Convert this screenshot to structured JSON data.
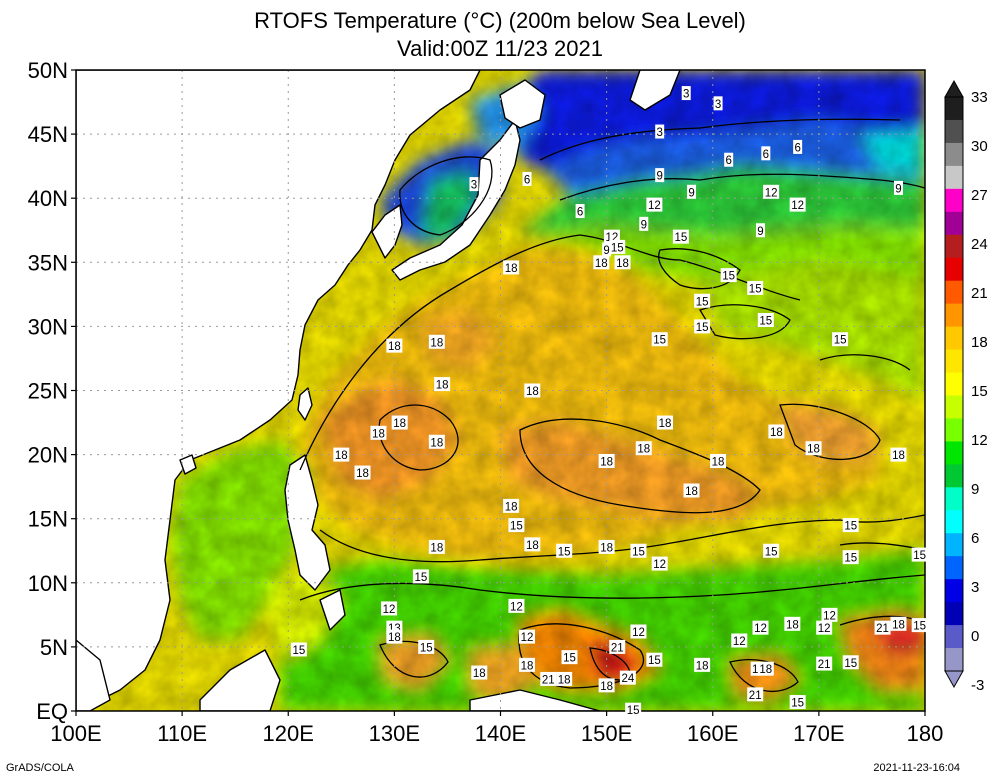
{
  "title": {
    "line1": "RTOFS Temperature (°C) (200m below Sea Level)",
    "line2": "Valid:00Z 11/23 2021"
  },
  "map": {
    "lon_range": [
      100,
      180
    ],
    "lat_range": [
      0,
      50
    ],
    "x_tick_labels": [
      "100E",
      "110E",
      "120E",
      "130E",
      "140E",
      "150E",
      "160E",
      "170E",
      "180"
    ],
    "y_tick_labels": [
      "EQ",
      "5N",
      "10N",
      "15N",
      "20N",
      "25N",
      "30N",
      "35N",
      "40N",
      "45N",
      "50N"
    ],
    "grid": "dotted",
    "land_color": "#ffffff",
    "coastline_color": "#000000"
  },
  "colorbar": {
    "levels": [
      "33",
      "30",
      "27",
      "24",
      "21",
      "18",
      "15",
      "12",
      "9",
      "6",
      "3",
      "0",
      "-3"
    ],
    "colors": [
      "#1e1e1e",
      "#505050",
      "#8c8c8c",
      "#c8c8c8",
      "#ff00c8",
      "#a00096",
      "#b41e1e",
      "#e60000",
      "#ff5a00",
      "#ff9600",
      "#ffc800",
      "#ffe600",
      "#ffff00",
      "#c8ff00",
      "#78ff00",
      "#00e600",
      "#00c832",
      "#00ffc8",
      "#00ffff",
      "#00b4ff",
      "#0064ff",
      "#0000e6",
      "#0000b4",
      "#5a5ac8",
      "#9696c8"
    ]
  },
  "contour_labels": [
    {
      "v": "3",
      "lon": 137.5,
      "lat": 41.1
    },
    {
      "v": "6",
      "lon": 142.5,
      "lat": 41.5
    },
    {
      "v": "3",
      "lon": 157.5,
      "lat": 48.2
    },
    {
      "v": "3",
      "lon": 155.0,
      "lat": 45.2
    },
    {
      "v": "3",
      "lon": 160.5,
      "lat": 47.4
    },
    {
      "v": "6",
      "lon": 161.5,
      "lat": 43.0
    },
    {
      "v": "6",
      "lon": 165.0,
      "lat": 43.5
    },
    {
      "v": "6",
      "lon": 168.0,
      "lat": 44.0
    },
    {
      "v": "9",
      "lon": 155.0,
      "lat": 41.8
    },
    {
      "v": "9",
      "lon": 158.0,
      "lat": 40.5
    },
    {
      "v": "12",
      "lon": 154.5,
      "lat": 39.5
    },
    {
      "v": "12",
      "lon": 165.5,
      "lat": 40.5
    },
    {
      "v": "12",
      "lon": 168.0,
      "lat": 39.5
    },
    {
      "v": "9",
      "lon": 177.5,
      "lat": 40.8
    },
    {
      "v": "6",
      "lon": 147.5,
      "lat": 39.0
    },
    {
      "v": "9",
      "lon": 153.5,
      "lat": 38.0
    },
    {
      "v": "9",
      "lon": 164.5,
      "lat": 37.5
    },
    {
      "v": "15",
      "lon": 157.0,
      "lat": 37.0
    },
    {
      "v": "12",
      "lon": 150.5,
      "lat": 37.0
    },
    {
      "v": "9",
      "lon": 150.0,
      "lat": 36.0
    },
    {
      "v": "15",
      "lon": 151.0,
      "lat": 36.2
    },
    {
      "v": "18",
      "lon": 149.5,
      "lat": 35.0
    },
    {
      "v": "18",
      "lon": 151.5,
      "lat": 35.0
    },
    {
      "v": "18",
      "lon": 141.0,
      "lat": 34.6
    },
    {
      "v": "15",
      "lon": 161.5,
      "lat": 34.0
    },
    {
      "v": "15",
      "lon": 164.0,
      "lat": 33.0
    },
    {
      "v": "15",
      "lon": 159.0,
      "lat": 32.0
    },
    {
      "v": "15",
      "lon": 165.0,
      "lat": 30.5
    },
    {
      "v": "15",
      "lon": 159.0,
      "lat": 30.0
    },
    {
      "v": "15",
      "lon": 155.0,
      "lat": 29.0
    },
    {
      "v": "15",
      "lon": 172.0,
      "lat": 29.0
    },
    {
      "v": "18",
      "lon": 130.0,
      "lat": 28.5
    },
    {
      "v": "18",
      "lon": 134.0,
      "lat": 28.8
    },
    {
      "v": "18",
      "lon": 134.5,
      "lat": 25.5
    },
    {
      "v": "18",
      "lon": 143.0,
      "lat": 25.0
    },
    {
      "v": "18",
      "lon": 130.5,
      "lat": 22.5
    },
    {
      "v": "18",
      "lon": 128.5,
      "lat": 21.7
    },
    {
      "v": "18",
      "lon": 134.0,
      "lat": 21.0
    },
    {
      "v": "18",
      "lon": 155.5,
      "lat": 22.5
    },
    {
      "v": "18",
      "lon": 166.0,
      "lat": 21.8
    },
    {
      "v": "18",
      "lon": 169.5,
      "lat": 20.5
    },
    {
      "v": "18",
      "lon": 177.5,
      "lat": 20.0
    },
    {
      "v": "18",
      "lon": 125.0,
      "lat": 20.0
    },
    {
      "v": "18",
      "lon": 127.0,
      "lat": 18.6
    },
    {
      "v": "18",
      "lon": 150.0,
      "lat": 19.5
    },
    {
      "v": "18",
      "lon": 153.5,
      "lat": 20.5
    },
    {
      "v": "18",
      "lon": 160.5,
      "lat": 19.5
    },
    {
      "v": "18",
      "lon": 158.0,
      "lat": 17.2
    },
    {
      "v": "18",
      "lon": 141.0,
      "lat": 16.0
    },
    {
      "v": "15",
      "lon": 141.5,
      "lat": 14.5
    },
    {
      "v": "18",
      "lon": 143.0,
      "lat": 13.0
    },
    {
      "v": "18",
      "lon": 134.0,
      "lat": 12.8
    },
    {
      "v": "15",
      "lon": 146.0,
      "lat": 12.5
    },
    {
      "v": "18",
      "lon": 150.0,
      "lat": 12.8
    },
    {
      "v": "15",
      "lon": 153.0,
      "lat": 12.5
    },
    {
      "v": "12",
      "lon": 155.0,
      "lat": 11.5
    },
    {
      "v": "15",
      "lon": 165.5,
      "lat": 12.5
    },
    {
      "v": "15",
      "lon": 173.0,
      "lat": 14.5
    },
    {
      "v": "15",
      "lon": 173.0,
      "lat": 12.0
    },
    {
      "v": "15",
      "lon": 179.5,
      "lat": 12.2
    },
    {
      "v": "15",
      "lon": 132.5,
      "lat": 10.5
    },
    {
      "v": "12",
      "lon": 129.5,
      "lat": 8.0
    },
    {
      "v": "12",
      "lon": 141.5,
      "lat": 8.2
    },
    {
      "v": "12",
      "lon": 171.0,
      "lat": 7.5
    },
    {
      "v": "13",
      "lon": 130.0,
      "lat": 6.5
    },
    {
      "v": "18",
      "lon": 130.0,
      "lat": 5.8
    },
    {
      "v": "15",
      "lon": 133.0,
      "lat": 5.0
    },
    {
      "v": "12",
      "lon": 142.5,
      "lat": 5.8
    },
    {
      "v": "12",
      "lon": 153.0,
      "lat": 6.2
    },
    {
      "v": "21",
      "lon": 151.0,
      "lat": 5.0
    },
    {
      "v": "12",
      "lon": 162.5,
      "lat": 5.5
    },
    {
      "v": "12",
      "lon": 164.5,
      "lat": 6.5
    },
    {
      "v": "18",
      "lon": 167.5,
      "lat": 6.8
    },
    {
      "v": "12",
      "lon": 170.5,
      "lat": 6.5
    },
    {
      "v": "21",
      "lon": 176.0,
      "lat": 6.5
    },
    {
      "v": "18",
      "lon": 177.5,
      "lat": 6.8
    },
    {
      "v": "15",
      "lon": 179.5,
      "lat": 6.7
    },
    {
      "v": "15",
      "lon": 121.0,
      "lat": 4.8
    },
    {
      "v": "18",
      "lon": 142.5,
      "lat": 3.6
    },
    {
      "v": "15",
      "lon": 146.5,
      "lat": 4.2
    },
    {
      "v": "15",
      "lon": 154.5,
      "lat": 4.0
    },
    {
      "v": "18",
      "lon": 159.0,
      "lat": 3.6
    },
    {
      "v": "18",
      "lon": 165.0,
      "lat": 3.3
    },
    {
      "v": "1",
      "lon": 164.0,
      "lat": 3.3
    },
    {
      "v": "21",
      "lon": 170.5,
      "lat": 3.7
    },
    {
      "v": "15",
      "lon": 173.0,
      "lat": 3.8
    },
    {
      "v": "18",
      "lon": 138.0,
      "lat": 3.0
    },
    {
      "v": "21",
      "lon": 144.5,
      "lat": 2.5
    },
    {
      "v": "18",
      "lon": 146.0,
      "lat": 2.5
    },
    {
      "v": "18",
      "lon": 150.0,
      "lat": 2.0
    },
    {
      "v": "24",
      "lon": 152.0,
      "lat": 2.6
    },
    {
      "v": "21",
      "lon": 164.0,
      "lat": 1.3
    },
    {
      "v": "15",
      "lon": 168.0,
      "lat": 0.7
    },
    {
      "v": "15",
      "lon": 152.5,
      "lat": 0.1
    }
  ],
  "footer": {
    "left": "GrADS/COLA",
    "right": "2021-11-23-16:04"
  }
}
